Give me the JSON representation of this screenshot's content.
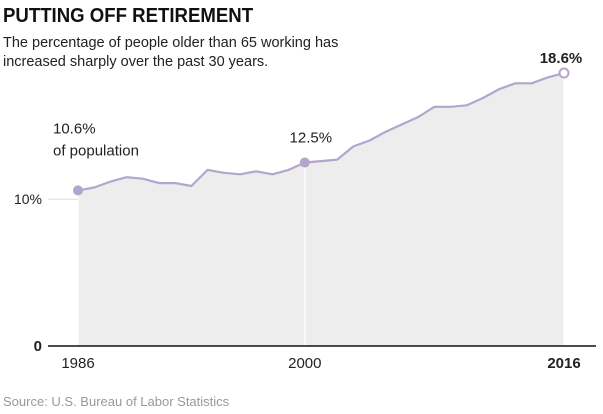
{
  "title": "PUTTING OFF RETIREMENT",
  "subtitle": "The percentage of people older than 65 working has increased sharply over the past 30 years.",
  "source": "Source: U.S. Bureau of Labor Statistics",
  "colors": {
    "line": "#b3a5cc",
    "area": "#ededed",
    "marker": "#b3a5cc",
    "text": "#222222",
    "axis": "#111111"
  },
  "chart_data": {
    "type": "area",
    "x": [
      1986,
      1987,
      1988,
      1989,
      1990,
      1991,
      1992,
      1993,
      1994,
      1995,
      1996,
      1997,
      1998,
      1999,
      2000,
      2001,
      2002,
      2003,
      2004,
      2005,
      2006,
      2007,
      2008,
      2009,
      2010,
      2011,
      2012,
      2013,
      2014,
      2015,
      2016
    ],
    "y": [
      10.6,
      10.8,
      11.2,
      11.5,
      11.4,
      11.1,
      11.1,
      10.9,
      12.0,
      11.8,
      11.7,
      11.9,
      11.7,
      12.0,
      12.5,
      12.6,
      12.7,
      13.6,
      14.0,
      14.6,
      15.1,
      15.6,
      16.3,
      16.3,
      16.4,
      16.9,
      17.5,
      17.9,
      17.9,
      18.3,
      18.6
    ],
    "ylim": [
      0,
      18.6
    ],
    "yticks": [
      {
        "value": 0,
        "label": "0"
      },
      {
        "value": 10,
        "label": "10%"
      }
    ],
    "xticks": [
      {
        "value": 1986,
        "label": "1986"
      },
      {
        "value": 2000,
        "label": "2000"
      },
      {
        "value": 2016,
        "label": "2016"
      }
    ],
    "annotations": [
      {
        "x": 1986,
        "y": 10.6,
        "lines": [
          "10.6%",
          "of population"
        ],
        "marker": "filled"
      },
      {
        "x": 2000,
        "y": 12.5,
        "lines": [
          "12.5%"
        ],
        "marker": "filled"
      },
      {
        "x": 2016,
        "y": 18.6,
        "lines": [
          "18.6%"
        ],
        "marker": "open"
      }
    ],
    "grid": false
  }
}
